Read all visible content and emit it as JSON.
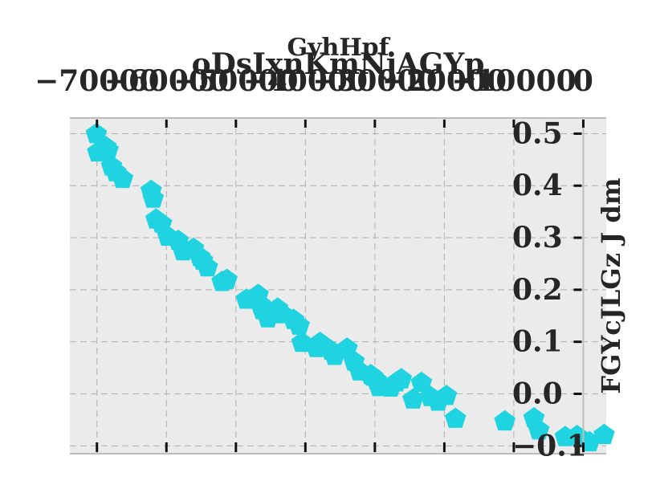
{
  "chart_data": {
    "type": "scatter",
    "title": "oDsIxnKmNjAGYp",
    "subtitle": "GyhHpf",
    "xlabel": "",
    "ylabel": "FGYcJLGz J dm",
    "xlim": [
      -73900,
      3300
    ],
    "ylim": [
      -0.115,
      0.53
    ],
    "x_ticks": [
      -70000,
      -60000,
      -50000,
      -40000,
      -30000,
      -20000,
      -10000,
      0
    ],
    "x_tick_labels": [
      "−70000",
      "−60000",
      "−50000",
      "−40000",
      "−30000",
      "−20000",
      "−10000",
      "0"
    ],
    "y_ticks": [
      -0.1,
      0.0,
      0.1,
      0.2,
      0.3,
      0.4,
      0.5
    ],
    "y_tick_labels": [
      "−0.1",
      "0.0",
      "0.1",
      "0.2",
      "0.3",
      "0.4",
      "0.5"
    ],
    "grid": true,
    "marker": "pentagon",
    "color": "#1fd3e0",
    "background": "#ebebeb",
    "series": [
      {
        "x": [
          -70100,
          -69900,
          -68700,
          -68400,
          -67900,
          -67300,
          -66300,
          -62200,
          -61900,
          -61500,
          -60700,
          -59800,
          -58300,
          -57600,
          -56100,
          -55200,
          -54800,
          -54100,
          -52000,
          -51300,
          -48500,
          -46800,
          -46500,
          -46200,
          -45400,
          -44000,
          -43300,
          -41700,
          -40900,
          -40500,
          -38400,
          -37900,
          -36300,
          -35800,
          -34000,
          -33000,
          -32200,
          -30600,
          -30300,
          -29800,
          -29400,
          -27700,
          -26900,
          -26200,
          -24500,
          -23300,
          -22000,
          -20900,
          -19700,
          -18400,
          -11300,
          -7100,
          -6400,
          -2600,
          -900,
          900,
          3000
        ],
        "y": [
          0.499,
          0.464,
          0.474,
          0.468,
          0.437,
          0.426,
          0.413,
          0.39,
          0.375,
          0.335,
          0.327,
          0.302,
          0.294,
          0.274,
          0.279,
          0.263,
          0.256,
          0.243,
          0.215,
          0.219,
          0.181,
          0.19,
          0.172,
          0.161,
          0.145,
          0.164,
          0.153,
          0.142,
          0.131,
          0.098,
          0.088,
          0.098,
          0.083,
          0.073,
          0.087,
          0.062,
          0.043,
          0.036,
          0.033,
          0.026,
          0.013,
          0.012,
          0.022,
          0.028,
          -0.011,
          0.021,
          -0.006,
          -0.015,
          -0.004,
          -0.048,
          -0.053,
          -0.047,
          -0.07,
          -0.083,
          -0.081,
          -0.093,
          -0.079
        ]
      }
    ]
  }
}
